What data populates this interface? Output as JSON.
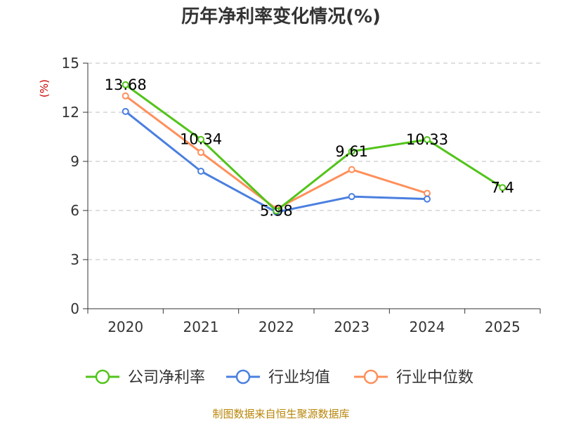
{
  "chart_data": {
    "type": "line",
    "title": "历年净利率变化情况(%)",
    "ylabel": "(%)",
    "xlabel": "",
    "categories": [
      "2020",
      "2021",
      "2022",
      "2023",
      "2024",
      "2025"
    ],
    "ylim": [
      0,
      15
    ],
    "yticks": [
      0,
      3,
      6,
      9,
      12,
      15
    ],
    "grid": true,
    "legend_position": "bottom",
    "series": [
      {
        "name": "公司净利率",
        "color": "#52c41a",
        "values": [
          13.68,
          10.34,
          5.98,
          9.61,
          10.33,
          7.4
        ],
        "labels": [
          "13.68",
          "10.34",
          "5.98",
          "9.61",
          "10.33",
          "7.4"
        ]
      },
      {
        "name": "行业均值",
        "color": "#4a7fe0",
        "values": [
          12.05,
          8.4,
          5.9,
          6.85,
          6.7,
          null
        ]
      },
      {
        "name": "行业中位数",
        "color": "#ff8f5a",
        "values": [
          13.0,
          9.55,
          6.1,
          8.5,
          7.05,
          null
        ]
      }
    ],
    "source": "制图数据来自恒生聚源数据库"
  }
}
